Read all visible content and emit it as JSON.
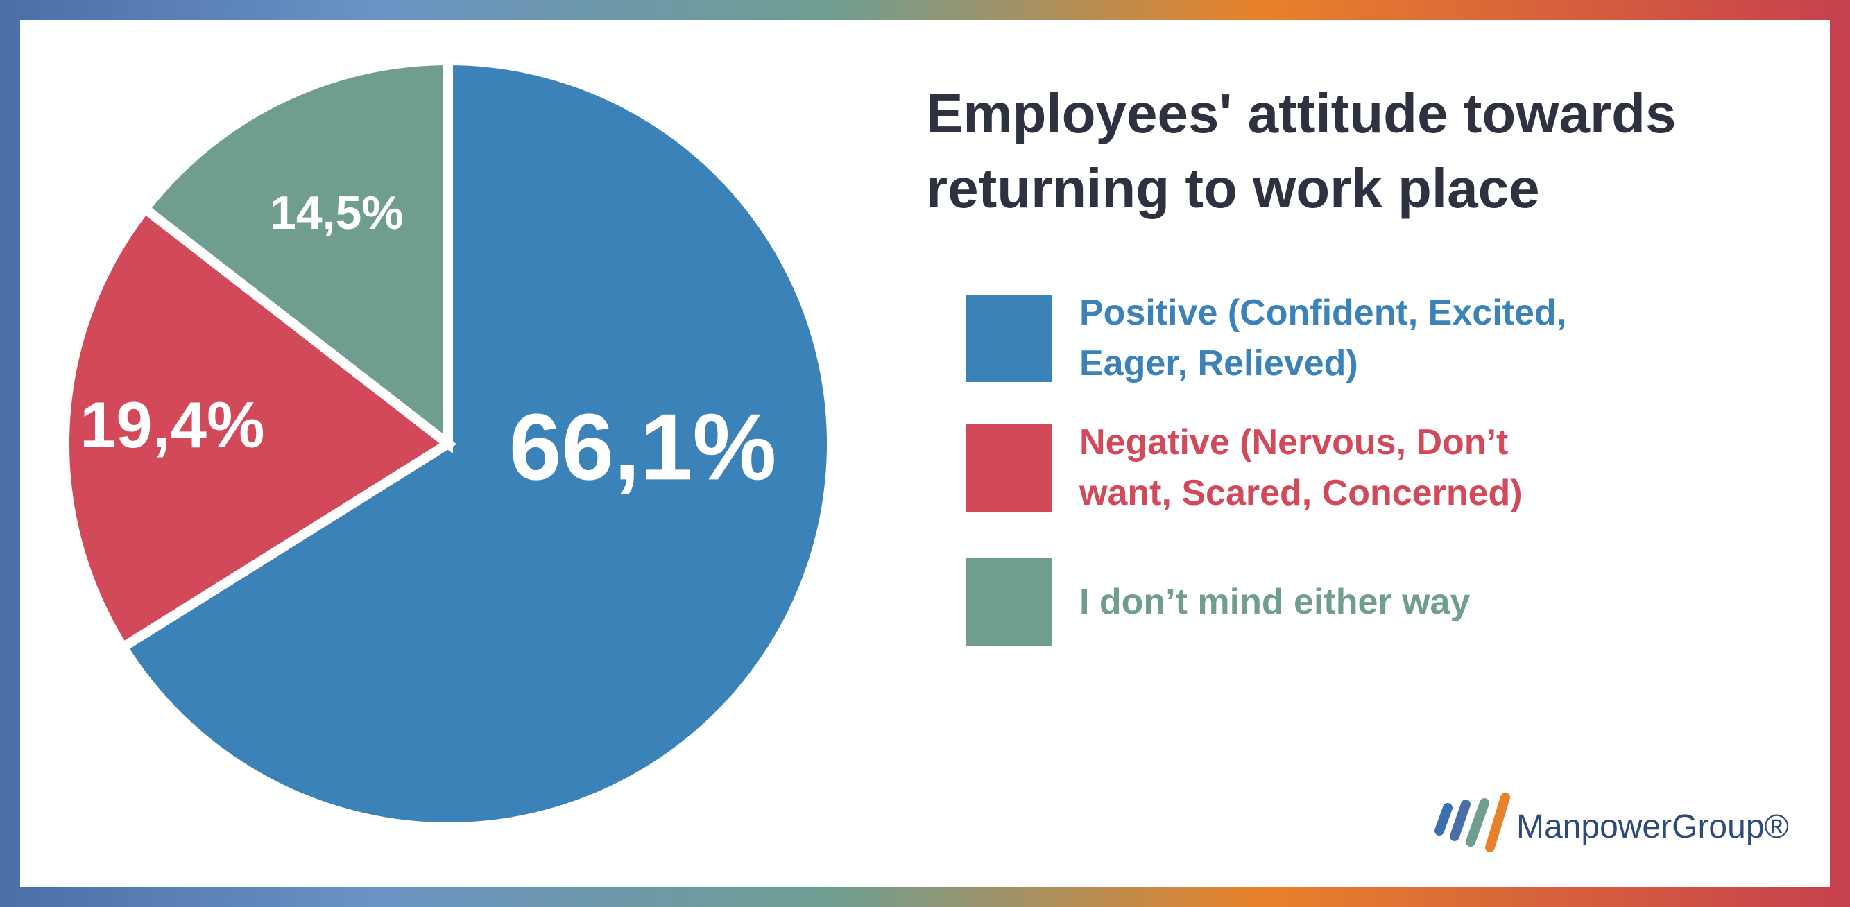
{
  "chart_data": {
    "type": "pie",
    "title": "Employees' attitude towards returning to work place",
    "categories": [
      "Positive (Confident, Excited,  Eager, Relieved)",
      "Negative (Nervous, Don’t want, Scared, Concerned)",
      "I don’t mind either way"
    ],
    "values": [
      66.1,
      19.4,
      14.5
    ],
    "value_labels": [
      "66,1%",
      "19,4%",
      "14,5%"
    ],
    "colors": [
      "#3b82b8",
      "#d24a59",
      "#6f9e91"
    ]
  },
  "brand": "ManpowerGroup®"
}
